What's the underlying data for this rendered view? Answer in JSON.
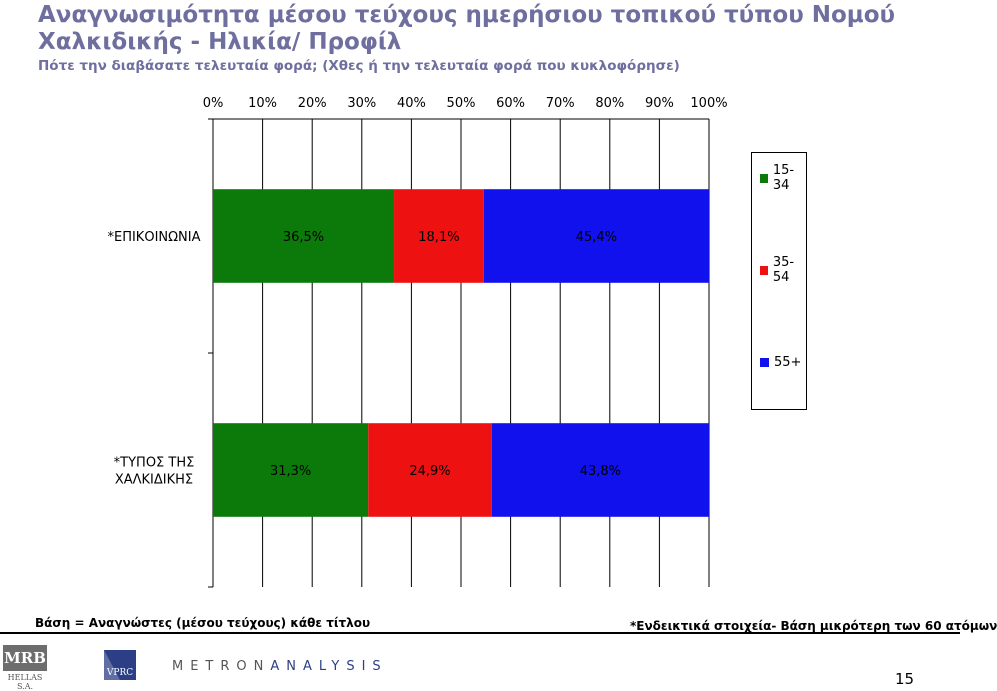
{
  "page": {
    "title": "Αναγνωσιμότητα μέσου τεύχους ημερήσιου τοπικού τύπου Νομού Χαλκιδικής - Ηλικία/ Προφίλ",
    "subtitle": "Πότε την διαβάσατε τελευταία φορά; (Χθες ή την τελευταία φορά που κυκλοφόρησε)",
    "footer_left": "Βάση = Αναγνώστες (μέσου τεύχους) κάθε τίτλου",
    "footer_right": "*Ενδεικτικά στοιχεία- Βάση μικρότερη των 60 ατόμων",
    "page_number": "15"
  },
  "logos": {
    "mrb_main": "MRB",
    "mrb_sub": "HELLAS S.A.",
    "vprc": "VPRC",
    "metron_part1": "METRON",
    "metron_part2": "ANALYSIS"
  },
  "chart_data": {
    "type": "bar",
    "orientation": "horizontal",
    "stacked": true,
    "percent_stacked": true,
    "title": "Αναγνωσιμότητα μέσου τεύχους ημερήσιου τοπικού τύπου Νομού Χαλκιδικής - Ηλικία/ Προφίλ",
    "xlim": [
      0,
      100
    ],
    "x_ticks": [
      "0%",
      "10%",
      "20%",
      "30%",
      "40%",
      "50%",
      "60%",
      "70%",
      "80%",
      "90%",
      "100%"
    ],
    "x_axis_position": "top",
    "categories": [
      "*ΕΠΙΚΟΙΝΩΝΙΑ",
      "*ΤΥΠΟΣ ΤΗΣ ΧΑΛΚΙΔΙΚΗΣ"
    ],
    "series": [
      {
        "name": "15-34",
        "color": "#0b7a0b",
        "values": [
          36.5,
          31.3
        ],
        "labels": [
          "36,5%",
          "31,3%"
        ]
      },
      {
        "name": "35-54",
        "color": "#ee1111",
        "values": [
          18.1,
          24.9
        ],
        "labels": [
          "18,1%",
          "24,9%"
        ]
      },
      {
        "name": "55+",
        "color": "#1111ee",
        "values": [
          45.4,
          43.8
        ],
        "labels": [
          "45,4%",
          "43,8%"
        ]
      }
    ],
    "legend_position": "right"
  }
}
